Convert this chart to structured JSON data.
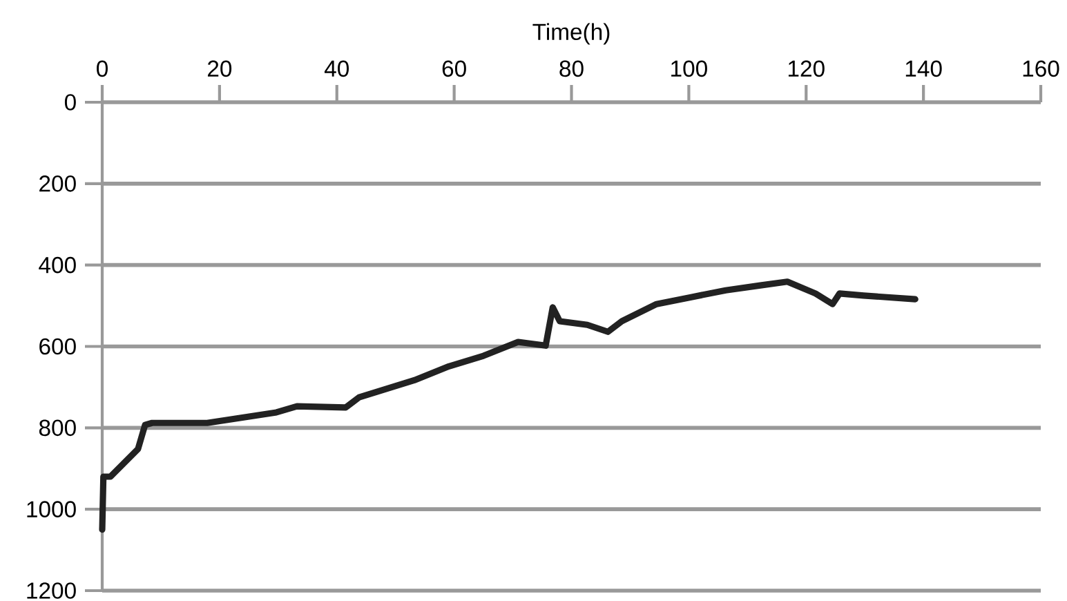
{
  "chart_data": {
    "type": "line",
    "xlabel": "Time(h)",
    "x": [
      0,
      0.2,
      1.4,
      6.1,
      7.3,
      8.5,
      17.9,
      29.7,
      33.2,
      41.5,
      43.8,
      53.2,
      59.1,
      65,
      70.9,
      75.6,
      76.8,
      78,
      82.7,
      86.2,
      88.6,
      94.5,
      100.4,
      106.3,
      112.2,
      116.8,
      121.6,
      124.5,
      125.7,
      129.8,
      138.6
    ],
    "series": [
      {
        "color": "#222222",
        "values": [
          1050,
          920,
          920,
          852,
          793,
          788,
          788,
          762,
          747,
          750,
          725,
          683,
          649,
          623,
          589,
          598,
          504,
          538,
          547,
          564,
          538,
          496,
          479,
          462,
          450,
          441,
          470,
          496,
          470,
          475,
          484
        ]
      }
    ],
    "xlim": [
      0,
      160
    ],
    "xticks": [
      0,
      20,
      40,
      60,
      80,
      100,
      120,
      140,
      160
    ],
    "ylim": [
      1200,
      0
    ],
    "yticks": [
      0,
      200,
      400,
      600,
      800,
      1000,
      1200
    ],
    "grid": "y",
    "marker": "none",
    "line_style": "solid"
  }
}
